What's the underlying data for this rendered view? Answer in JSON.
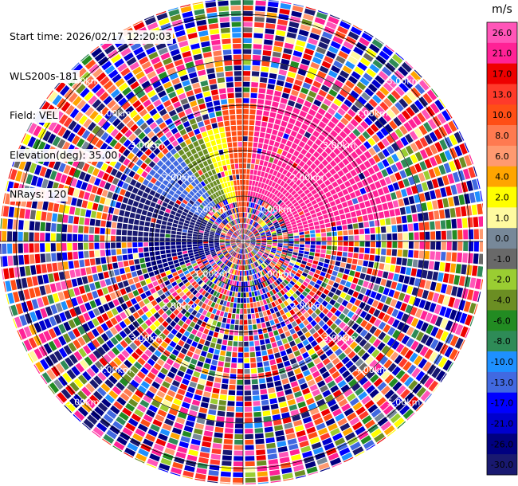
{
  "metadata": {
    "start_time": "Start time: 2026/02/17 12:20:03",
    "instrument": "WLS200s-181",
    "field": "Field: VEL",
    "elevation": "Elevation(deg): 35.00",
    "nrays": "NRays: 120"
  },
  "chart_data": {
    "type": "heatmap",
    "projection": "polar-ppi",
    "field": "VEL",
    "rays": 120,
    "range_rings_km": [
      1.0,
      2.0,
      3.0,
      4.0,
      5.0
    ],
    "range_ring_labels": [
      "1.00km",
      "2.00km",
      "3.00km",
      "4.00km",
      "5.00km"
    ],
    "max_range_km": 5.35,
    "colorbar": {
      "unit": "m/s",
      "ticks": [
        "26.0",
        "21.0",
        "17.0",
        "13.0",
        "10.0",
        "8.0",
        "6.0",
        "4.0",
        "2.0",
        "1.0",
        "0.0",
        "-1.0",
        "-2.0",
        "-4.0",
        "-6.0",
        "-8.0",
        "-10.0",
        "-13.0",
        "-17.0",
        "-21.0",
        "-26.0",
        "-30.0"
      ],
      "bins": [
        {
          "min": 26,
          "max": 30,
          "color": "#ff55b8"
        },
        {
          "min": 21,
          "max": 26,
          "color": "#ff2296"
        },
        {
          "min": 17,
          "max": 21,
          "color": "#ee0000"
        },
        {
          "min": 13,
          "max": 17,
          "color": "#ff3a2a"
        },
        {
          "min": 10,
          "max": 13,
          "color": "#ff4e16"
        },
        {
          "min": 8,
          "max": 10,
          "color": "#ff7a50"
        },
        {
          "min": 6,
          "max": 8,
          "color": "#ff9a70"
        },
        {
          "min": 4,
          "max": 6,
          "color": "#ffa500"
        },
        {
          "min": 2,
          "max": 4,
          "color": "#ffff00"
        },
        {
          "min": 1,
          "max": 2,
          "color": "#fffaa0"
        },
        {
          "min": 0,
          "max": 1,
          "color": "#778899"
        },
        {
          "min": -1,
          "max": 0,
          "color": "#696969"
        },
        {
          "min": -2,
          "max": -1,
          "color": "#9acd32"
        },
        {
          "min": -4,
          "max": -2,
          "color": "#6b8e23"
        },
        {
          "min": -6,
          "max": -4,
          "color": "#228b22"
        },
        {
          "min": -8,
          "max": -6,
          "color": "#2e8b57"
        },
        {
          "min": -10,
          "max": -8,
          "color": "#1e90ff"
        },
        {
          "min": -13,
          "max": -10,
          "color": "#4169e1"
        },
        {
          "min": -17,
          "max": -13,
          "color": "#0000ff"
        },
        {
          "min": -21,
          "max": -17,
          "color": "#0000cd"
        },
        {
          "min": -26,
          "max": -21,
          "color": "#000080"
        },
        {
          "min": -30,
          "max": -26,
          "color": "#191970"
        }
      ]
    },
    "coherent_sectors": [
      {
        "az_from": 45,
        "az_to": 80,
        "range_km": [
          1.0,
          3.3
        ],
        "value": 24
      },
      {
        "az_from": 5,
        "az_to": 45,
        "range_km": [
          1.0,
          3.3
        ],
        "value": 23
      },
      {
        "az_from": -8,
        "az_to": 5,
        "range_km": [
          0.3,
          3.0
        ],
        "value": 12
      },
      {
        "az_from": -20,
        "az_to": -8,
        "range_km": [
          0.8,
          2.5
        ],
        "value": 3
      },
      {
        "az_from": -35,
        "az_to": -20,
        "range_km": [
          1.0,
          2.4
        ],
        "value": -3
      },
      {
        "az_from": -60,
        "az_to": -35,
        "range_km": [
          1.0,
          2.5
        ],
        "value": -12
      },
      {
        "az_from": -90,
        "az_to": -60,
        "range_km": [
          0.5,
          2.7
        ],
        "value": -28
      },
      {
        "az_from": -110,
        "az_to": -90,
        "range_km": [
          0.5,
          2.2
        ],
        "value": -24
      }
    ]
  }
}
